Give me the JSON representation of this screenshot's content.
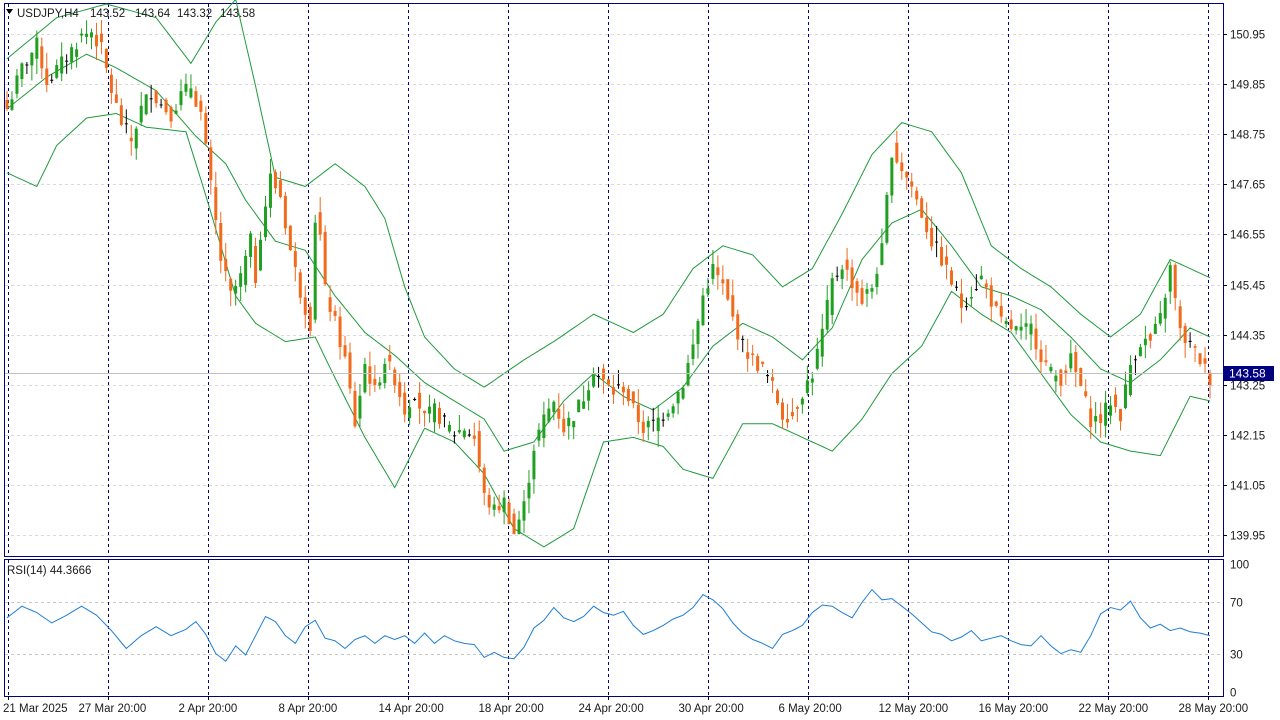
{
  "header": {
    "symbol": "USDJPY,H4",
    "open": "143.52",
    "high": "143.64",
    "low": "143.32",
    "close": "143.58"
  },
  "indicator": {
    "label": "RSI(14) 44.3666"
  },
  "current_price": "143.58",
  "colors": {
    "bull": "#20a020",
    "bear": "#f26a1b",
    "doji": "#000000",
    "bands": "#1f9a3a",
    "rsi": "#1e7fd4",
    "frame": "#000080",
    "grid": "#d9d9d9",
    "price_tag_bg": "#000080"
  },
  "chart_data": {
    "type": "candlestick",
    "y_axis_labels": [
      "150.95",
      "149.85",
      "148.75",
      "147.65",
      "146.55",
      "145.45",
      "144.35",
      "143.25",
      "142.15",
      "141.05",
      "139.95"
    ],
    "x_axis_labels": [
      "21 Mar 2025",
      "27 Mar 20:00",
      "2 Apr 20:00",
      "8 Apr 20:00",
      "14 Apr 20:00",
      "18 Apr 20:00",
      "24 Apr 20:00",
      "30 Apr 20:00",
      "6 May 20:00",
      "12 May 20:00",
      "16 May 20:00",
      "22 May 20:00",
      "28 May 20:00"
    ],
    "rsi_axis_labels": [
      "100",
      "70",
      "30",
      "0"
    ],
    "ylim": [
      139.5,
      151.6
    ],
    "rsi_ylim": [
      0,
      100
    ],
    "rsi_last": 44.3666,
    "close_path": [
      [
        0,
        149.3
      ],
      [
        3,
        150.2
      ],
      [
        6,
        150.7
      ],
      [
        8,
        149.9
      ],
      [
        11,
        150.3
      ],
      [
        13,
        150.6
      ],
      [
        15,
        150.9
      ],
      [
        17,
        151.0
      ],
      [
        19,
        150.6
      ],
      [
        21,
        149.7
      ],
      [
        23,
        149.0
      ],
      [
        25,
        148.6
      ],
      [
        27,
        149.3
      ],
      [
        29,
        149.7
      ],
      [
        31,
        149.4
      ],
      [
        33,
        149.2
      ],
      [
        35,
        149.6
      ],
      [
        37,
        149.8
      ],
      [
        39,
        149.2
      ],
      [
        41,
        147.6
      ],
      [
        43,
        146.0
      ],
      [
        45,
        145.2
      ],
      [
        47,
        145.6
      ],
      [
        49,
        146.4
      ],
      [
        50,
        145.6
      ],
      [
        51,
        146.6
      ],
      [
        53,
        147.8
      ],
      [
        55,
        147.4
      ],
      [
        57,
        146.2
      ],
      [
        59,
        145.3
      ],
      [
        61,
        144.6
      ],
      [
        62,
        146.9
      ],
      [
        63,
        146.5
      ],
      [
        64,
        145.3
      ],
      [
        66,
        144.6
      ],
      [
        68,
        143.8
      ],
      [
        70,
        142.4
      ],
      [
        72,
        143.7
      ],
      [
        74,
        143.1
      ],
      [
        76,
        143.8
      ],
      [
        78,
        143.4
      ],
      [
        80,
        142.7
      ],
      [
        82,
        143.1
      ],
      [
        84,
        142.5
      ],
      [
        86,
        142.7
      ],
      [
        88,
        142.4
      ],
      [
        90,
        142.2
      ],
      [
        92,
        142.3
      ],
      [
        94,
        142.1
      ],
      [
        96,
        140.8
      ],
      [
        98,
        140.5
      ],
      [
        100,
        140.7
      ],
      [
        102,
        140.0
      ],
      [
        104,
        140.6
      ],
      [
        106,
        141.9
      ],
      [
        108,
        142.5
      ],
      [
        110,
        142.9
      ],
      [
        112,
        142.3
      ],
      [
        114,
        142.6
      ],
      [
        116,
        143.0
      ],
      [
        118,
        143.6
      ],
      [
        120,
        143.3
      ],
      [
        122,
        143.1
      ],
      [
        124,
        143.2
      ],
      [
        126,
        142.7
      ],
      [
        128,
        142.3
      ],
      [
        130,
        142.4
      ],
      [
        132,
        142.6
      ],
      [
        134,
        142.9
      ],
      [
        136,
        143.3
      ],
      [
        138,
        144.1
      ],
      [
        140,
        145.2
      ],
      [
        142,
        145.8
      ],
      [
        144,
        145.4
      ],
      [
        146,
        144.7
      ],
      [
        148,
        144.1
      ],
      [
        150,
        143.8
      ],
      [
        152,
        143.6
      ],
      [
        154,
        143.2
      ],
      [
        156,
        142.6
      ],
      [
        158,
        142.6
      ],
      [
        160,
        143.1
      ],
      [
        162,
        143.5
      ],
      [
        164,
        144.4
      ],
      [
        166,
        145.5
      ],
      [
        168,
        145.9
      ],
      [
        170,
        145.5
      ],
      [
        172,
        145.1
      ],
      [
        174,
        145.4
      ],
      [
        176,
        146.2
      ],
      [
        178,
        148.4
      ],
      [
        180,
        148.0
      ],
      [
        182,
        147.6
      ],
      [
        184,
        147.0
      ],
      [
        186,
        146.4
      ],
      [
        188,
        146.0
      ],
      [
        190,
        145.5
      ],
      [
        192,
        145.0
      ],
      [
        194,
        145.3
      ],
      [
        196,
        145.6
      ],
      [
        198,
        145.1
      ],
      [
        200,
        144.6
      ],
      [
        202,
        144.5
      ],
      [
        204,
        144.4
      ],
      [
        206,
        144.5
      ],
      [
        208,
        143.9
      ],
      [
        210,
        143.5
      ],
      [
        212,
        143.4
      ],
      [
        214,
        143.8
      ],
      [
        216,
        143.2
      ],
      [
        218,
        142.5
      ],
      [
        220,
        142.5
      ],
      [
        222,
        142.9
      ],
      [
        224,
        142.6
      ],
      [
        226,
        143.7
      ],
      [
        228,
        144.2
      ],
      [
        230,
        144.2
      ],
      [
        232,
        144.7
      ],
      [
        234,
        145.8
      ],
      [
        236,
        144.4
      ],
      [
        238,
        144.1
      ],
      [
        240,
        143.8
      ],
      [
        242,
        143.4
      ]
    ],
    "upper_band": [
      [
        0,
        150.4
      ],
      [
        10,
        151.3
      ],
      [
        20,
        151.6
      ],
      [
        30,
        151.3
      ],
      [
        37,
        150.3
      ],
      [
        42,
        151.2
      ],
      [
        46,
        151.7
      ],
      [
        50,
        149.8
      ],
      [
        54,
        147.8
      ],
      [
        60,
        147.6
      ],
      [
        66,
        148.1
      ],
      [
        72,
        147.6
      ],
      [
        76,
        146.9
      ],
      [
        80,
        145.4
      ],
      [
        84,
        144.3
      ],
      [
        90,
        143.6
      ],
      [
        96,
        143.2
      ],
      [
        104,
        143.8
      ],
      [
        110,
        144.2
      ],
      [
        118,
        144.8
      ],
      [
        126,
        144.4
      ],
      [
        132,
        144.8
      ],
      [
        138,
        145.8
      ],
      [
        144,
        146.3
      ],
      [
        150,
        146.1
      ],
      [
        156,
        145.4
      ],
      [
        162,
        145.8
      ],
      [
        168,
        147.0
      ],
      [
        174,
        148.3
      ],
      [
        180,
        149.0
      ],
      [
        186,
        148.8
      ],
      [
        192,
        147.9
      ],
      [
        198,
        146.3
      ],
      [
        204,
        145.8
      ],
      [
        210,
        145.4
      ],
      [
        216,
        144.8
      ],
      [
        222,
        144.3
      ],
      [
        228,
        144.8
      ],
      [
        234,
        146.0
      ],
      [
        242,
        145.6
      ]
    ],
    "middle_band": [
      [
        0,
        149.3
      ],
      [
        8,
        150.0
      ],
      [
        16,
        150.5
      ],
      [
        22,
        150.2
      ],
      [
        30,
        149.7
      ],
      [
        38,
        148.7
      ],
      [
        44,
        148.1
      ],
      [
        48,
        147.3
      ],
      [
        54,
        146.4
      ],
      [
        60,
        146.2
      ],
      [
        66,
        145.2
      ],
      [
        72,
        144.4
      ],
      [
        78,
        143.9
      ],
      [
        84,
        143.3
      ],
      [
        90,
        142.9
      ],
      [
        96,
        142.5
      ],
      [
        100,
        141.8
      ],
      [
        106,
        142.0
      ],
      [
        112,
        142.9
      ],
      [
        118,
        143.5
      ],
      [
        124,
        143.0
      ],
      [
        130,
        142.7
      ],
      [
        136,
        143.2
      ],
      [
        142,
        144.1
      ],
      [
        148,
        144.6
      ],
      [
        154,
        144.3
      ],
      [
        160,
        143.8
      ],
      [
        166,
        144.5
      ],
      [
        172,
        146.0
      ],
      [
        178,
        146.8
      ],
      [
        184,
        147.1
      ],
      [
        190,
        146.3
      ],
      [
        196,
        145.4
      ],
      [
        202,
        145.2
      ],
      [
        208,
        144.9
      ],
      [
        214,
        144.3
      ],
      [
        220,
        143.6
      ],
      [
        226,
        143.3
      ],
      [
        232,
        143.8
      ],
      [
        238,
        144.5
      ],
      [
        242,
        144.3
      ]
    ],
    "lower_band": [
      [
        0,
        147.9
      ],
      [
        6,
        147.6
      ],
      [
        10,
        148.5
      ],
      [
        16,
        149.1
      ],
      [
        22,
        149.2
      ],
      [
        28,
        148.9
      ],
      [
        36,
        148.8
      ],
      [
        40,
        147.4
      ],
      [
        46,
        145.2
      ],
      [
        50,
        144.6
      ],
      [
        56,
        144.2
      ],
      [
        62,
        144.3
      ],
      [
        66,
        143.4
      ],
      [
        72,
        142.1
      ],
      [
        78,
        141.0
      ],
      [
        84,
        142.3
      ],
      [
        90,
        142.0
      ],
      [
        96,
        141.3
      ],
      [
        102,
        140.1
      ],
      [
        108,
        139.7
      ],
      [
        114,
        140.1
      ],
      [
        120,
        142.0
      ],
      [
        126,
        142.1
      ],
      [
        132,
        141.9
      ],
      [
        136,
        141.4
      ],
      [
        142,
        141.2
      ],
      [
        148,
        142.4
      ],
      [
        154,
        142.4
      ],
      [
        160,
        142.1
      ],
      [
        166,
        141.8
      ],
      [
        172,
        142.5
      ],
      [
        178,
        143.5
      ],
      [
        184,
        144.1
      ],
      [
        190,
        145.3
      ],
      [
        196,
        144.8
      ],
      [
        202,
        144.4
      ],
      [
        208,
        143.5
      ],
      [
        214,
        142.6
      ],
      [
        220,
        142.0
      ],
      [
        226,
        141.8
      ],
      [
        232,
        141.7
      ],
      [
        238,
        143.0
      ],
      [
        242,
        142.9
      ]
    ],
    "rsi_path": [
      [
        0,
        58
      ],
      [
        3,
        67
      ],
      [
        6,
        62
      ],
      [
        9,
        54
      ],
      [
        12,
        60
      ],
      [
        15,
        67
      ],
      [
        18,
        60
      ],
      [
        21,
        48
      ],
      [
        24,
        34
      ],
      [
        27,
        44
      ],
      [
        30,
        51
      ],
      [
        33,
        44
      ],
      [
        36,
        49
      ],
      [
        38,
        55
      ],
      [
        40,
        45
      ],
      [
        42,
        30
      ],
      [
        44,
        24
      ],
      [
        46,
        36
      ],
      [
        48,
        29
      ],
      [
        50,
        44
      ],
      [
        52,
        59
      ],
      [
        54,
        55
      ],
      [
        56,
        44
      ],
      [
        58,
        38
      ],
      [
        60,
        51
      ],
      [
        62,
        56
      ],
      [
        64,
        42
      ],
      [
        66,
        40
      ],
      [
        68,
        34
      ],
      [
        70,
        41
      ],
      [
        72,
        44
      ],
      [
        74,
        38
      ],
      [
        76,
        44
      ],
      [
        78,
        41
      ],
      [
        80,
        44
      ],
      [
        82,
        38
      ],
      [
        84,
        46
      ],
      [
        86,
        38
      ],
      [
        88,
        44
      ],
      [
        90,
        40
      ],
      [
        92,
        38
      ],
      [
        94,
        37
      ],
      [
        96,
        27
      ],
      [
        98,
        31
      ],
      [
        100,
        27
      ],
      [
        102,
        26
      ],
      [
        104,
        35
      ],
      [
        106,
        50
      ],
      [
        108,
        56
      ],
      [
        110,
        66
      ],
      [
        112,
        58
      ],
      [
        114,
        55
      ],
      [
        116,
        59
      ],
      [
        118,
        67
      ],
      [
        120,
        62
      ],
      [
        122,
        60
      ],
      [
        124,
        63
      ],
      [
        126,
        52
      ],
      [
        128,
        45
      ],
      [
        130,
        48
      ],
      [
        132,
        52
      ],
      [
        134,
        57
      ],
      [
        136,
        60
      ],
      [
        138,
        66
      ],
      [
        140,
        76
      ],
      [
        142,
        72
      ],
      [
        144,
        65
      ],
      [
        146,
        54
      ],
      [
        148,
        46
      ],
      [
        150,
        41
      ],
      [
        152,
        38
      ],
      [
        154,
        34
      ],
      [
        156,
        45
      ],
      [
        158,
        48
      ],
      [
        160,
        52
      ],
      [
        162,
        62
      ],
      [
        164,
        68
      ],
      [
        166,
        67
      ],
      [
        168,
        62
      ],
      [
        170,
        58
      ],
      [
        172,
        70
      ],
      [
        174,
        80
      ],
      [
        176,
        72
      ],
      [
        178,
        73
      ],
      [
        180,
        67
      ],
      [
        182,
        61
      ],
      [
        184,
        54
      ],
      [
        186,
        47
      ],
      [
        188,
        45
      ],
      [
        190,
        40
      ],
      [
        192,
        43
      ],
      [
        194,
        48
      ],
      [
        196,
        40
      ],
      [
        198,
        42
      ],
      [
        200,
        44
      ],
      [
        202,
        40
      ],
      [
        204,
        37
      ],
      [
        206,
        36
      ],
      [
        208,
        44
      ],
      [
        210,
        36
      ],
      [
        212,
        30
      ],
      [
        214,
        33
      ],
      [
        216,
        31
      ],
      [
        218,
        44
      ],
      [
        220,
        61
      ],
      [
        222,
        66
      ],
      [
        224,
        64
      ],
      [
        226,
        71
      ],
      [
        228,
        58
      ],
      [
        230,
        50
      ],
      [
        232,
        53
      ],
      [
        234,
        48
      ],
      [
        236,
        50
      ],
      [
        238,
        47
      ],
      [
        240,
        46
      ],
      [
        242,
        44
      ]
    ]
  }
}
